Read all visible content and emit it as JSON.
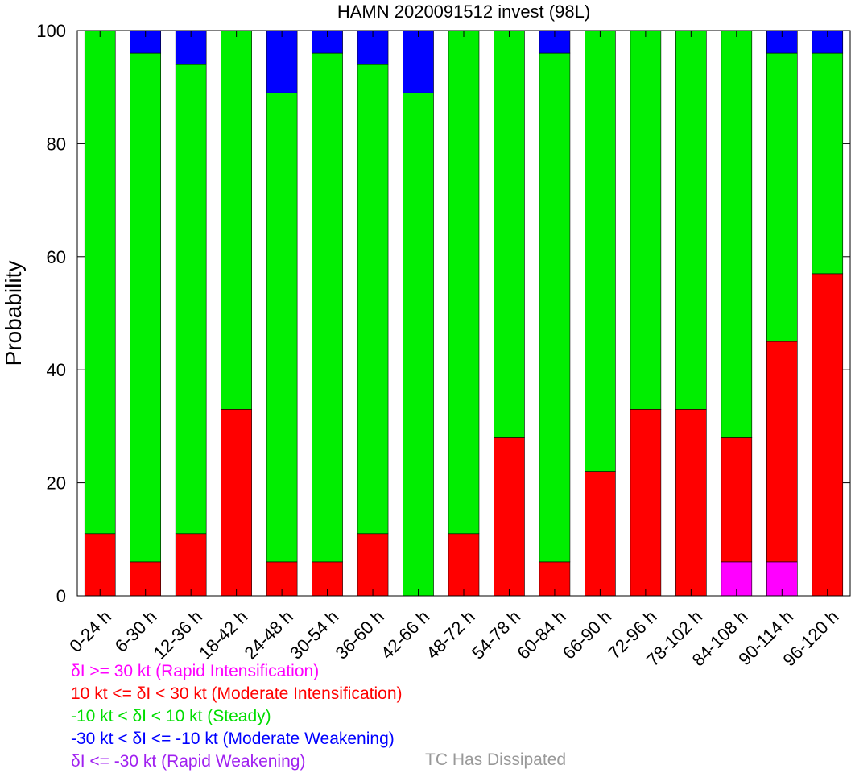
{
  "chart_data": {
    "type": "bar",
    "stacked": true,
    "title": "HAMN 2020091512 invest (98L)",
    "ylabel": "Probability",
    "xlabel": "",
    "ylim": [
      0,
      100
    ],
    "yticks": [
      0,
      20,
      40,
      60,
      80,
      100
    ],
    "grid": false,
    "legend_position": "bottom",
    "categories": [
      "0-24 h",
      "6-30 h",
      "12-36 h",
      "18-42 h",
      "24-48 h",
      "30-54 h",
      "36-60 h",
      "42-66 h",
      "48-72 h",
      "54-78 h",
      "60-84 h",
      "66-90 h",
      "72-96 h",
      "78-102 h",
      "84-108 h",
      "90-114 h",
      "96-120 h"
    ],
    "series": [
      {
        "name": "δI >= 30 kt (Rapid Intensification)",
        "color": "#ff00ff",
        "values": [
          0,
          0,
          0,
          0,
          0,
          0,
          0,
          0,
          0,
          0,
          0,
          0,
          0,
          0,
          6,
          6,
          0
        ]
      },
      {
        "name": "10 kt <= δI < 30 kt (Moderate Intensification)",
        "color": "#ff0000",
        "values": [
          11,
          6,
          11,
          33,
          6,
          6,
          11,
          0,
          11,
          28,
          6,
          22,
          33,
          33,
          22,
          39,
          57
        ]
      },
      {
        "name": "-10 kt < δI < 10 kt (Steady)",
        "color": "#00ee00",
        "values": [
          89,
          90,
          83,
          67,
          83,
          90,
          83,
          89,
          89,
          72,
          90,
          78,
          67,
          67,
          72,
          51,
          39
        ]
      },
      {
        "name": "-30 kt < δI <= -10 kt (Moderate Weakening)",
        "color": "#0000ff",
        "values": [
          0,
          4,
          6,
          0,
          11,
          4,
          6,
          11,
          0,
          0,
          4,
          0,
          0,
          0,
          0,
          4,
          4
        ]
      },
      {
        "name": "δI <= -30 kt (Rapid Weakening)",
        "color": "#a020f0",
        "values": [
          0,
          0,
          0,
          0,
          0,
          0,
          0,
          0,
          0,
          0,
          0,
          0,
          0,
          0,
          0,
          0,
          0
        ]
      }
    ],
    "dissipated_label": "TC Has Dissipated",
    "dissipated_color": "#999999"
  }
}
